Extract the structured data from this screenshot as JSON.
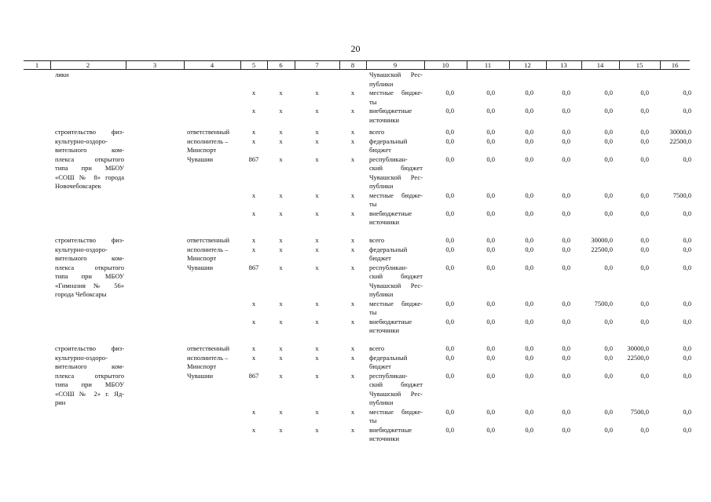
{
  "page_number": "20",
  "column_headers": [
    "1",
    "2",
    "3",
    "4",
    "5",
    "6",
    "7",
    "8",
    "9",
    "10",
    "11",
    "12",
    "13",
    "14",
    "15",
    "16"
  ],
  "continuation": {
    "col2_tail": "лики",
    "col9_tail": [
      "Чувашской Рес-",
      "публики"
    ],
    "rows": [
      {
        "c5": "х",
        "c6": "х",
        "c7": "х",
        "c8": "х",
        "src": [
          "местные бюдже-",
          "ты"
        ],
        "v": [
          "0,0",
          "0,0",
          "0,0",
          "0,0",
          "0,0",
          "0,0",
          "0,0"
        ]
      },
      {
        "c5": "х",
        "c6": "х",
        "c7": "х",
        "c8": "х",
        "src": [
          "внебюджетные",
          "источники"
        ],
        "v": [
          "0,0",
          "0,0",
          "0,0",
          "0,0",
          "0,0",
          "0,0",
          "0,0"
        ]
      }
    ]
  },
  "blocks": [
    {
      "name_lines": [
        "строительство физ-",
        "культурно-оздоро-",
        "вительного ком-",
        "плекса открытого",
        "типа при МБОУ",
        "«СОШ № 8» города",
        "Новочебоксарек"
      ],
      "executor_lines": [
        "ответственный",
        "исполнитель –",
        "Минспорт",
        "Чувашии"
      ],
      "rows": [
        {
          "c5": "х",
          "c6": "х",
          "c7": "х",
          "c8": "х",
          "src": [
            "всего"
          ],
          "v": [
            "0,0",
            "0,0",
            "0,0",
            "0,0",
            "0,0",
            "0,0",
            "30000,0"
          ]
        },
        {
          "c5": "х",
          "c6": "х",
          "c7": "х",
          "c8": "х",
          "src": [
            "федеральный",
            "бюджет"
          ],
          "v": [
            "0,0",
            "0,0",
            "0,0",
            "0,0",
            "0,0",
            "0,0",
            "22500,0"
          ]
        },
        {
          "c5": "867",
          "c6": "х",
          "c7": "х",
          "c8": "х",
          "src": [
            "республикан-",
            "ский бюджет",
            "Чувашской Рес-",
            "публики"
          ],
          "v": [
            "0,0",
            "0,0",
            "0,0",
            "0,0",
            "0,0",
            "0,0",
            "0,0"
          ]
        },
        {
          "c5": "х",
          "c6": "х",
          "c7": "х",
          "c8": "х",
          "src": [
            "местные бюдже-",
            "ты"
          ],
          "v": [
            "0,0",
            "0,0",
            "0,0",
            "0,0",
            "0,0",
            "0,0",
            "7500,0"
          ]
        },
        {
          "c5": "х",
          "c6": "х",
          "c7": "х",
          "c8": "х",
          "src": [
            "внебюджетные",
            "источники"
          ],
          "v": [
            "0,0",
            "0,0",
            "0,0",
            "0,0",
            "0,0",
            "0,0",
            "0,0"
          ]
        }
      ]
    },
    {
      "name_lines": [
        "строительство физ-",
        "культурно-оздоро-",
        "вительного ком-",
        "плекса открытого",
        "типа при МБОУ",
        "«Гимназия № 56»",
        "города Чебоксары"
      ],
      "executor_lines": [
        "ответственный",
        "исполнитель –",
        "Минспорт",
        "Чувашии"
      ],
      "rows": [
        {
          "c5": "х",
          "c6": "х",
          "c7": "х",
          "c8": "х",
          "src": [
            "всего"
          ],
          "v": [
            "0,0",
            "0,0",
            "0,0",
            "0,0",
            "30000,0",
            "0,0",
            "0,0"
          ]
        },
        {
          "c5": "х",
          "c6": "х",
          "c7": "х",
          "c8": "х",
          "src": [
            "федеральный",
            "бюджет"
          ],
          "v": [
            "0,0",
            "0,0",
            "0,0",
            "0,0",
            "22500,0",
            "0,0",
            "0,0"
          ]
        },
        {
          "c5": "867",
          "c6": "х",
          "c7": "х",
          "c8": "х",
          "src": [
            "республикан-",
            "ский бюджет",
            "Чувашской Рес-",
            "публики"
          ],
          "v": [
            "0,0",
            "0,0",
            "0,0",
            "0,0",
            "0,0",
            "0,0",
            "0,0"
          ]
        },
        {
          "c5": "х",
          "c6": "х",
          "c7": "х",
          "c8": "х",
          "src": [
            "местные бюдже-",
            "ты"
          ],
          "v": [
            "0,0",
            "0,0",
            "0,0",
            "0,0",
            "7500,0",
            "0,0",
            "0,0"
          ]
        },
        {
          "c5": "х",
          "c6": "х",
          "c7": "х",
          "c8": "х",
          "src": [
            "внебюджетные",
            "источники"
          ],
          "v": [
            "0,0",
            "0,0",
            "0,0",
            "0,0",
            "0,0",
            "0,0",
            "0,0"
          ]
        }
      ]
    },
    {
      "name_lines": [
        "строительство физ-",
        "культурно-оздоро-",
        "вительного ком-",
        "плекса открытого",
        "типа при МБОУ",
        "«СОШ № 2» г. Яд-",
        "рин"
      ],
      "executor_lines": [
        "ответственный",
        "исполнитель –",
        "Минспорт",
        "Чувашии"
      ],
      "rows": [
        {
          "c5": "х",
          "c6": "х",
          "c7": "х",
          "c8": "х",
          "src": [
            "всего"
          ],
          "v": [
            "0,0",
            "0,0",
            "0,0",
            "0,0",
            "0,0",
            "30000,0",
            "0,0"
          ]
        },
        {
          "c5": "х",
          "c6": "х",
          "c7": "х",
          "c8": "х",
          "src": [
            "федеральный",
            "бюджет"
          ],
          "v": [
            "0,0",
            "0,0",
            "0,0",
            "0,0",
            "0,0",
            "22500,0",
            "0,0"
          ]
        },
        {
          "c5": "867",
          "c6": "х",
          "c7": "х",
          "c8": "х",
          "src": [
            "республикан-",
            "ский бюджет",
            "Чувашской Рес-",
            "публики"
          ],
          "v": [
            "0,0",
            "0,0",
            "0,0",
            "0,0",
            "0,0",
            "0,0",
            "0,0"
          ]
        },
        {
          "c5": "х",
          "c6": "х",
          "c7": "х",
          "c8": "х",
          "src": [
            "местные бюдже-",
            "ты"
          ],
          "v": [
            "0,0",
            "0,0",
            "0,0",
            "0,0",
            "0,0",
            "7500,0",
            "0,0"
          ]
        },
        {
          "c5": "х",
          "c6": "х",
          "c7": "х",
          "c8": "х",
          "src": [
            "внебюджетные",
            "источники"
          ],
          "v": [
            "0,0",
            "0,0",
            "0,0",
            "0,0",
            "0,0",
            "0,0",
            "0,0"
          ]
        }
      ]
    }
  ]
}
